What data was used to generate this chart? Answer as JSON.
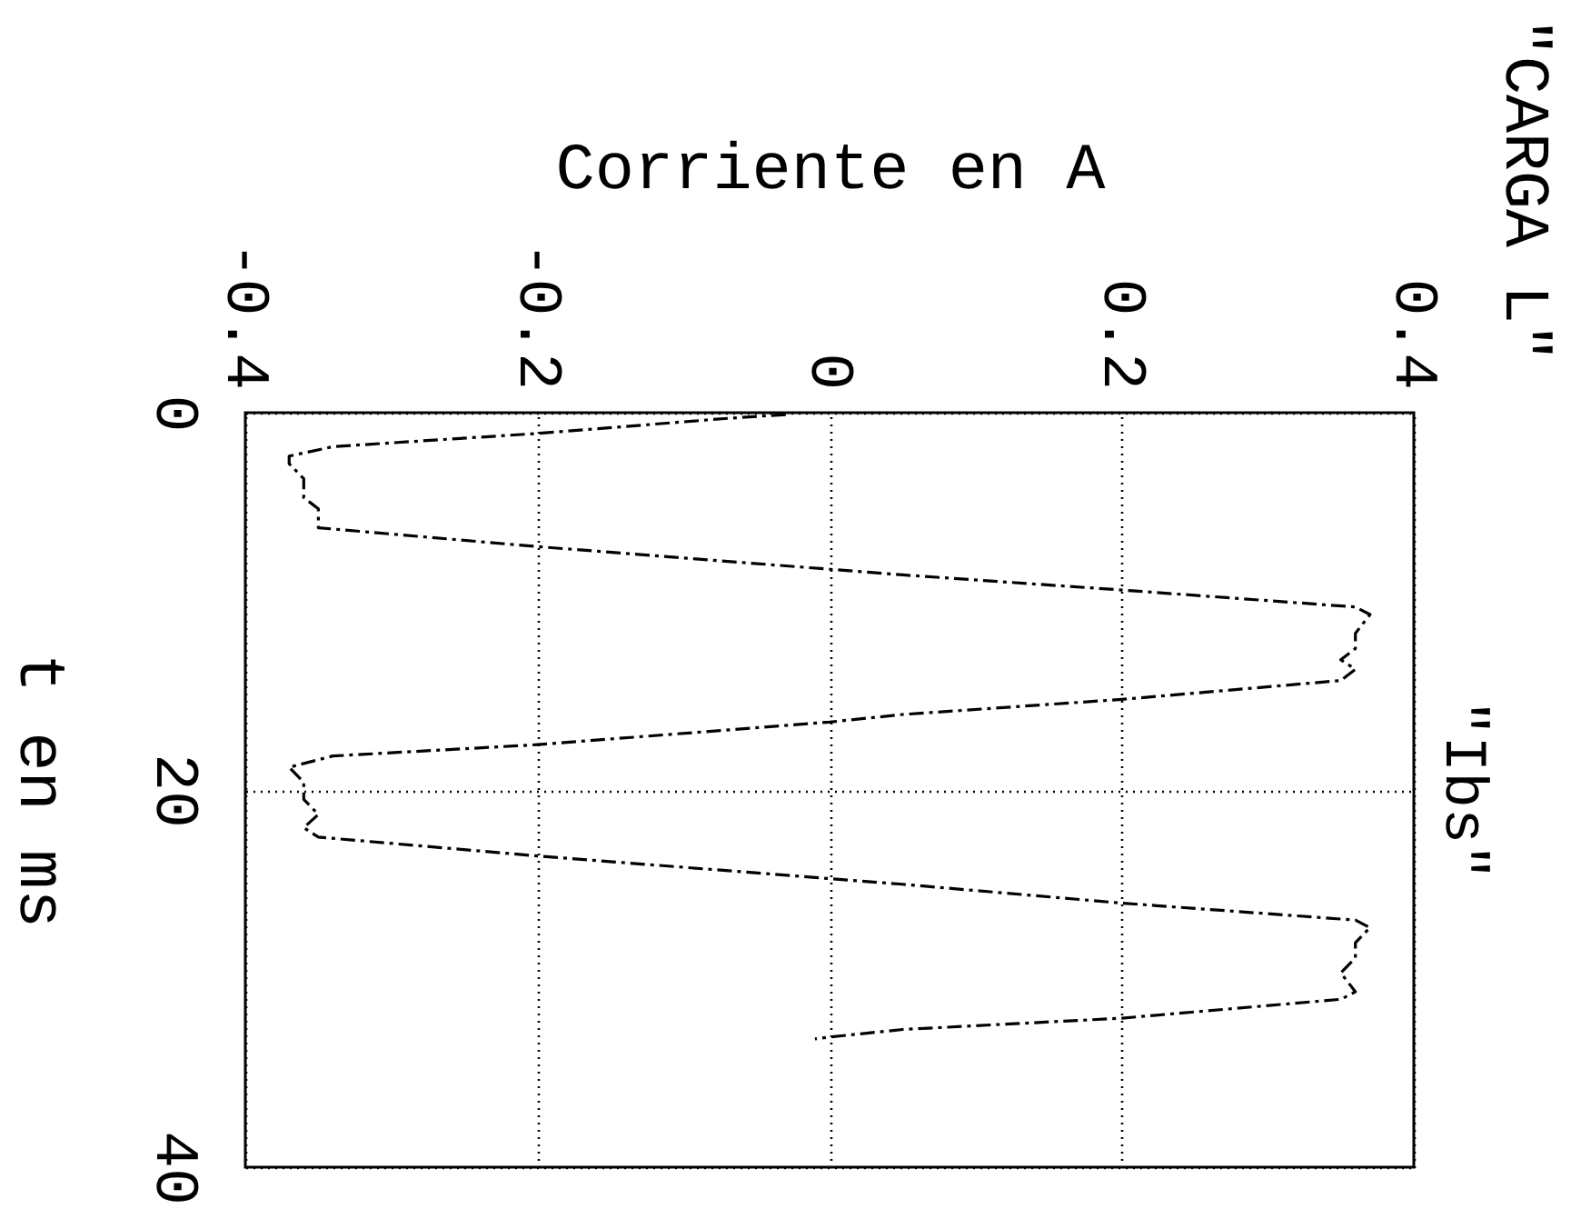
{
  "chart_data": {
    "type": "line",
    "title": "\"CARGA L\"",
    "xlabel": "Corriente en A",
    "ylabel": "t en ms",
    "xlim": [
      -0.4,
      0.4
    ],
    "ylim": [
      40,
      0
    ],
    "xticks": [
      -0.4,
      -0.2,
      0,
      0.2,
      0.4
    ],
    "yticks": [
      0,
      20,
      40
    ],
    "grid": true,
    "line_style": "dashed",
    "series": [
      {
        "name": "\"Ibs\"",
        "color": "#000000",
        "x": [
          -0.03,
          -0.07,
          -0.2,
          -0.34,
          -0.37,
          -0.37,
          -0.36,
          -0.36,
          -0.35,
          -0.35,
          -0.35,
          -0.2,
          0.0,
          0.05,
          0.2,
          0.36,
          0.37,
          0.36,
          0.36,
          0.35,
          0.36,
          0.35,
          0.2,
          0.05,
          0.0,
          -0.2,
          -0.34,
          -0.37,
          -0.36,
          -0.36,
          -0.35,
          -0.36,
          -0.35,
          -0.2,
          0.0,
          0.05,
          0.2,
          0.36,
          0.37,
          0.36,
          0.36,
          0.35,
          0.36,
          0.35,
          0.2,
          0.05,
          0.0,
          -0.01
        ],
        "values": [
          0.1,
          0.3,
          1.1,
          1.8,
          2.3,
          2.7,
          3.5,
          4.5,
          5.1,
          5.6,
          6.1,
          7.1,
          8.3,
          8.6,
          9.4,
          10.3,
          10.7,
          11.7,
          12.5,
          13.1,
          13.6,
          14.2,
          15.2,
          16.0,
          16.4,
          17.6,
          18.2,
          18.8,
          19.6,
          20.5,
          21.3,
          22.0,
          22.5,
          23.5,
          24.7,
          25.0,
          26.0,
          26.9,
          27.3,
          28.1,
          28.9,
          29.7,
          30.7,
          31.1,
          32.1,
          32.7,
          33.1,
          33.2
        ]
      }
    ]
  }
}
